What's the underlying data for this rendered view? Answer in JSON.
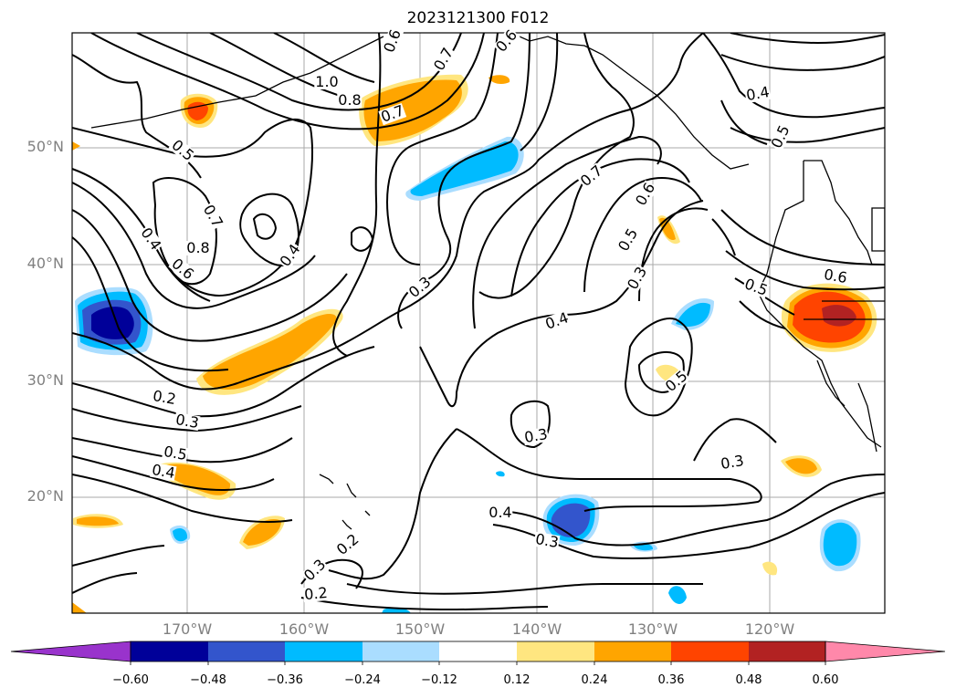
{
  "title": "2023121300 F012",
  "map": {
    "lat_labels": [
      "50°N",
      "40°N",
      "30°N",
      "20°N"
    ],
    "lon_labels": [
      "170°W",
      "160°W",
      "150°W",
      "140°W",
      "130°W",
      "120°W"
    ],
    "contour_labels": [
      "1.0",
      "0.8",
      "0.7",
      "0.6",
      "0.7",
      "0.6",
      "0.4",
      "0.5",
      "0.5",
      "0.7",
      "0.8",
      "0.4",
      "0.6",
      "0.4",
      "0.3",
      "0.7",
      "0.6",
      "0.5",
      "0.3",
      "0.4",
      "0.6",
      "0.5",
      "0.2",
      "0.3",
      "0.5",
      "0.4",
      "0.5",
      "0.3",
      "0.3",
      "0.4",
      "0.2",
      "0.3",
      "0.2",
      "0.3"
    ],
    "contour_label_note": "black contours of background field"
  },
  "colorbar": {
    "ticks": [
      "−0.60",
      "−0.48",
      "−0.36",
      "−0.24",
      "−0.12",
      "0.12",
      "0.24",
      "0.36",
      "0.48",
      "0.60"
    ],
    "colors": [
      "#9933cc",
      "#000099",
      "#3355cc",
      "#00bbff",
      "#aaddff",
      "#ffffff",
      "#ffe680",
      "#ffa500",
      "#ff4400",
      "#b22222",
      "#ff88aa"
    ]
  }
}
